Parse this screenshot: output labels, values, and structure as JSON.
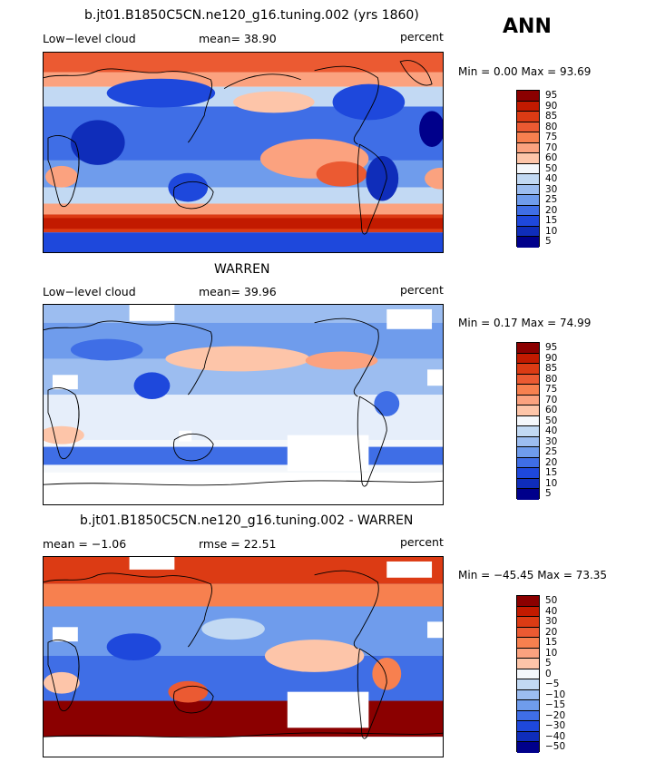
{
  "season": "ANN",
  "panels": [
    {
      "title": "b.jt01.B1850C5CN.ne120_g16.tuning.002 (yrs 1860)",
      "left_label": "Low−level cloud",
      "center_label": "mean=  38.90",
      "units": "percent",
      "minmax": "Min =   0.00 Max =  93.69",
      "levels": [
        "95",
        "90",
        "85",
        "80",
        "75",
        "70",
        "60",
        "50",
        "40",
        "30",
        "25",
        "20",
        "15",
        "10",
        "5"
      ]
    },
    {
      "title": "WARREN",
      "left_label": "Low−level cloud",
      "center_label": "mean=  39.96",
      "units": "percent",
      "minmax": "Min =   0.17 Max =  74.99",
      "levels": [
        "95",
        "90",
        "85",
        "80",
        "75",
        "70",
        "60",
        "50",
        "40",
        "30",
        "25",
        "20",
        "15",
        "10",
        "5"
      ]
    },
    {
      "title": "b.jt01.B1850C5CN.ne120_g16.tuning.002 - WARREN",
      "left_label": "mean =  −1.06",
      "center_label": "rmse =  22.51",
      "units": "percent",
      "minmax": "Min = −45.45 Max =  73.35",
      "levels": [
        "50",
        "40",
        "30",
        "20",
        "15",
        "10",
        "5",
        "0",
        "−5",
        "−10",
        "−15",
        "−20",
        "−30",
        "−40",
        "−50"
      ]
    }
  ],
  "colors": {
    "scale": [
      "#8b0000",
      "#c21a00",
      "#dc3b14",
      "#eb5a32",
      "#f7804f",
      "#fba27f",
      "#fdc5a9",
      "#f4f7fb",
      "#c2d9f3",
      "#9cbdf0",
      "#6f9cec",
      "#3f6ee6",
      "#1e48dc",
      "#0f2dba",
      "#00008b"
    ],
    "diff_hi_fill": "#fdc5a9",
    "diff_lo_fill": "#9cbdf0"
  }
}
